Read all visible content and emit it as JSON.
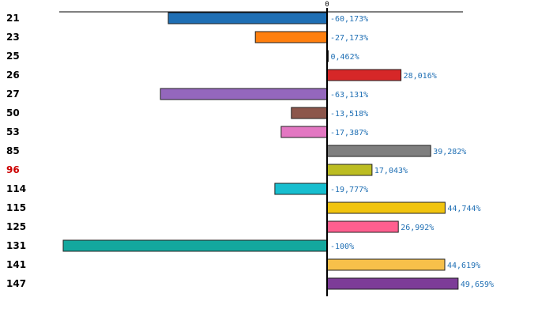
{
  "chart_data": {
    "type": "bar",
    "orientation": "horizontal",
    "zero_label": "0",
    "xlim": [
      -100,
      50
    ],
    "categories": [
      "21",
      "23",
      "25",
      "26",
      "27",
      "50",
      "53",
      "85",
      "96",
      "114",
      "115",
      "125",
      "131",
      "141",
      "147"
    ],
    "values": [
      -60.173,
      -27.173,
      0.462,
      28.016,
      -63.131,
      -13.518,
      -17.387,
      39.282,
      17.043,
      -19.777,
      44.744,
      26.992,
      -100,
      44.619,
      49.659
    ],
    "value_labels": [
      "-60,173%",
      "-27,173%",
      "0,462%",
      "28,016%",
      "-63,131%",
      "-13,518%",
      "-17,387%",
      "39,282%",
      "17,043%",
      "-19,777%",
      "44,744%",
      "26,992%",
      "-100%",
      "44,619%",
      "49,659%"
    ],
    "colors": [
      "#1f6fb4",
      "#ff7f0e",
      "#2ca02c",
      "#d62728",
      "#9467bd",
      "#8c564b",
      "#e377c2",
      "#7f7f7f",
      "#bcbd22",
      "#17becf",
      "#f1c40f",
      "#ff5f8f",
      "#13a89e",
      "#f7c04a",
      "#7d3c98"
    ],
    "highlight_category": "96",
    "highlight_color": "#cc0000",
    "label_color": "#1f6fb4"
  }
}
